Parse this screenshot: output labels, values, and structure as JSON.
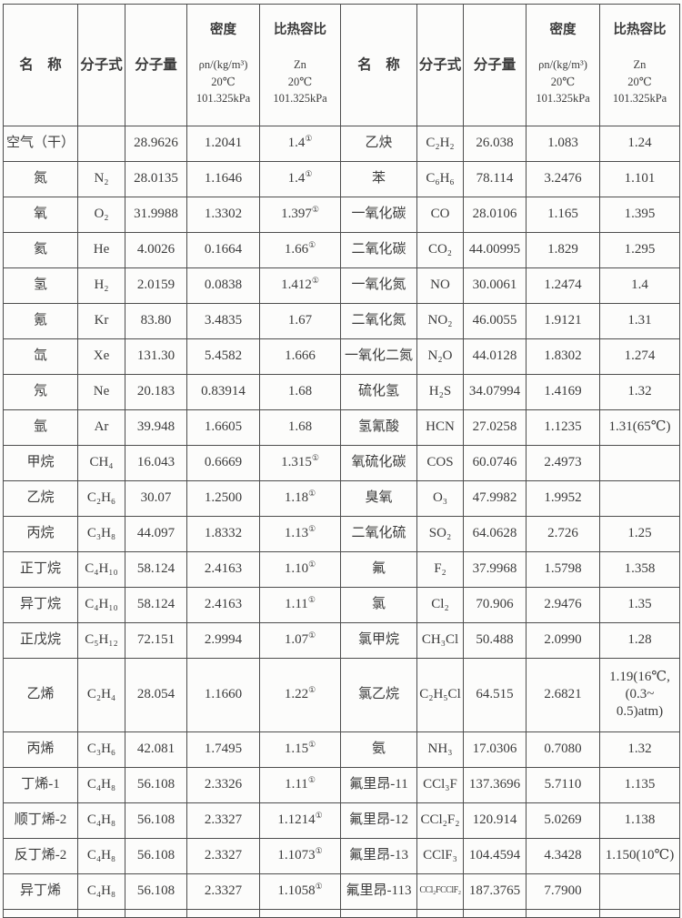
{
  "colors": {
    "border": "#4d4d4d",
    "text": "#3b3b3b",
    "background": "#fcfcfb"
  },
  "headers": {
    "name": "名　称",
    "formula": "分子式",
    "mw": "分子量",
    "density_title": "密度",
    "density_sub": "ρn/(kg/m³)\n20℃\n101.325kPa",
    "ratio_title": "比热容比",
    "ratio_sub": "Zn\n20℃\n101.325kPa"
  },
  "rows": [
    {
      "left": {
        "name": "空气（干）",
        "formula": "",
        "mw": "28.9626",
        "density": "1.2041",
        "ratio": "1.4①"
      },
      "right": {
        "name": "乙炔",
        "formula": "C₂H₂",
        "mw": "26.038",
        "density": "1.083",
        "ratio": "1.24"
      }
    },
    {
      "left": {
        "name": "氮",
        "formula": "N₂",
        "mw": "28.0135",
        "density": "1.1646",
        "ratio": "1.4①"
      },
      "right": {
        "name": "苯",
        "formula": "C₆H₆",
        "mw": "78.114",
        "density": "3.2476",
        "ratio": "1.101"
      }
    },
    {
      "left": {
        "name": "氧",
        "formula": "O₂",
        "mw": "31.9988",
        "density": "1.3302",
        "ratio": "1.397①"
      },
      "right": {
        "name": "一氧化碳",
        "formula": "CO",
        "mw": "28.0106",
        "density": "1.165",
        "ratio": "1.395"
      }
    },
    {
      "left": {
        "name": "氦",
        "formula": "He",
        "mw": "4.0026",
        "density": "0.1664",
        "ratio": "1.66①"
      },
      "right": {
        "name": "二氧化碳",
        "formula": "CO₂",
        "mw": "44.00995",
        "density": "1.829",
        "ratio": "1.295"
      }
    },
    {
      "left": {
        "name": "氢",
        "formula": "H₂",
        "mw": "2.0159",
        "density": "0.0838",
        "ratio": "1.412①"
      },
      "right": {
        "name": "一氧化氮",
        "formula": "NO",
        "mw": "30.0061",
        "density": "1.2474",
        "ratio": "1.4"
      }
    },
    {
      "left": {
        "name": "氪",
        "formula": "Kr",
        "mw": "83.80",
        "density": "3.4835",
        "ratio": "1.67"
      },
      "right": {
        "name": "二氧化氮",
        "formula": "NO₂",
        "mw": "46.0055",
        "density": "1.9121",
        "ratio": "1.31"
      }
    },
    {
      "left": {
        "name": "氙",
        "formula": "Xe",
        "mw": "131.30",
        "density": "5.4582",
        "ratio": "1.666"
      },
      "right": {
        "name": "一氧化二氮",
        "formula": "N₂O",
        "mw": "44.0128",
        "density": "1.8302",
        "ratio": "1.274"
      }
    },
    {
      "left": {
        "name": "氖",
        "formula": "Ne",
        "mw": "20.183",
        "density": "0.83914",
        "ratio": "1.68"
      },
      "right": {
        "name": "硫化氢",
        "formula": "H₂S",
        "mw": "34.07994",
        "density": "1.4169",
        "ratio": "1.32"
      }
    },
    {
      "left": {
        "name": "氩",
        "formula": "Ar",
        "mw": "39.948",
        "density": "1.6605",
        "ratio": "1.68"
      },
      "right": {
        "name": "氢氰酸",
        "formula": "HCN",
        "mw": "27.0258",
        "density": "1.1235",
        "ratio": "1.31(65℃)"
      }
    },
    {
      "left": {
        "name": "甲烷",
        "formula": "CH₄",
        "mw": "16.043",
        "density": "0.6669",
        "ratio": "1.315①"
      },
      "right": {
        "name": "氧硫化碳",
        "formula": "COS",
        "mw": "60.0746",
        "density": "2.4973",
        "ratio": ""
      }
    },
    {
      "left": {
        "name": "乙烷",
        "formula": "C₂H₆",
        "mw": "30.07",
        "density": "1.2500",
        "ratio": "1.18①"
      },
      "right": {
        "name": "臭氧",
        "formula": "O₃",
        "mw": "47.9982",
        "density": "1.9952",
        "ratio": ""
      }
    },
    {
      "left": {
        "name": "丙烷",
        "formula": "C₃H₈",
        "mw": "44.097",
        "density": "1.8332",
        "ratio": "1.13①"
      },
      "right": {
        "name": "二氧化硫",
        "formula": "SO₂",
        "mw": "64.0628",
        "density": "2.726",
        "ratio": "1.25"
      }
    },
    {
      "left": {
        "name": "正丁烷",
        "formula": "C₄H₁₀",
        "mw": "58.124",
        "density": "2.4163",
        "ratio": "1.10①"
      },
      "right": {
        "name": "氟",
        "formula": "F₂",
        "mw": "37.9968",
        "density": "1.5798",
        "ratio": "1.358"
      }
    },
    {
      "left": {
        "name": "异丁烷",
        "formula": "C₄H₁₀",
        "mw": "58.124",
        "density": "2.4163",
        "ratio": "1.11①"
      },
      "right": {
        "name": "氯",
        "formula": "Cl₂",
        "mw": "70.906",
        "density": "2.9476",
        "ratio": "1.35"
      }
    },
    {
      "left": {
        "name": "正戊烷",
        "formula": "C₅H₁₂",
        "mw": "72.151",
        "density": "2.9994",
        "ratio": "1.07①"
      },
      "right": {
        "name": "氯甲烷",
        "formula": "CH₃Cl",
        "mw": "50.488",
        "density": "2.0990",
        "ratio": "1.28"
      }
    },
    {
      "left": {
        "name": "乙烯",
        "formula": "C₂H₄",
        "mw": "28.054",
        "density": "1.1660",
        "ratio": "1.22①"
      },
      "right": {
        "name": "氯乙烷",
        "formula": "C₂H₅Cl",
        "mw": "64.515",
        "density": "2.6821",
        "ratio": "1.19(16℃,\n(0.3~\n0.5)atm)"
      }
    },
    {
      "left": {
        "name": "丙烯",
        "formula": "C₃H₆",
        "mw": "42.081",
        "density": "1.7495",
        "ratio": "1.15①"
      },
      "right": {
        "name": "氨",
        "formula": "NH₃",
        "mw": "17.0306",
        "density": "0.7080",
        "ratio": "1.32"
      }
    },
    {
      "left": {
        "name": "丁烯-1",
        "formula": "C₄H₈",
        "mw": "56.108",
        "density": "2.3326",
        "ratio": "1.11①"
      },
      "right": {
        "name": "氟里昂-11",
        "formula": "CCl₃F",
        "mw": "137.3696",
        "density": "5.7110",
        "ratio": "1.135"
      }
    },
    {
      "left": {
        "name": "顺丁烯-2",
        "formula": "C₄H₈",
        "mw": "56.108",
        "density": "2.3327",
        "ratio": "1.1214①"
      },
      "right": {
        "name": "氟里昂-12",
        "formula": "CCl₂F₂",
        "mw": "120.914",
        "density": "5.0269",
        "ratio": "1.138"
      }
    },
    {
      "left": {
        "name": "反丁烯-2",
        "formula": "C₄H₈",
        "mw": "56.108",
        "density": "2.3327",
        "ratio": "1.1073①"
      },
      "right": {
        "name": "氟里昂-13",
        "formula": "CClF₃",
        "mw": "104.4594",
        "density": "4.3428",
        "ratio": "1.150(10℃)"
      }
    },
    {
      "left": {
        "name": "异丁烯",
        "formula": "C₄H₈",
        "mw": "56.108",
        "density": "2.3327",
        "ratio": "1.1058①"
      },
      "right": {
        "name": "氟里昂-113",
        "formula": "CCl₂FCClF₂",
        "mw": "187.3765",
        "density": "7.7900",
        "ratio": ""
      }
    }
  ]
}
